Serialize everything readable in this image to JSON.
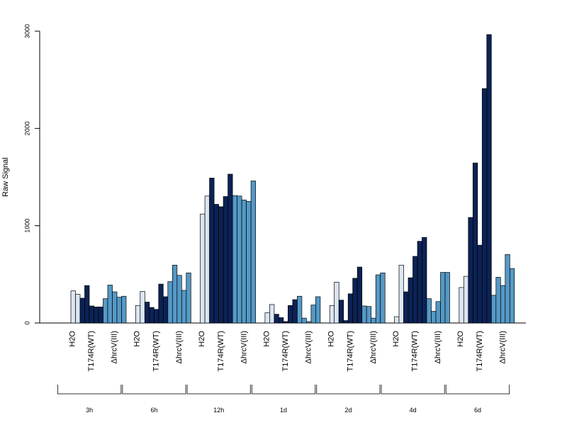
{
  "chart_data": {
    "type": "bar",
    "ylabel": "Raw Signal",
    "ylim": [
      0,
      3000
    ],
    "yticks": [
      0,
      1000,
      2000,
      3000
    ],
    "grid": false,
    "legend": "none",
    "groups": [
      "3h",
      "6h",
      "12h",
      "1d",
      "2d",
      "4d",
      "6d"
    ],
    "conditions": [
      {
        "name": "H2O",
        "color": "#dce6f2"
      },
      {
        "name": "T174R(WT)",
        "color": "#0b2255"
      },
      {
        "name": "ΔhrcV(III)",
        "color": "#5499c7"
      }
    ],
    "values": {
      "3h": {
        "H2O": [
          330,
          295
        ],
        "T174R(WT)": [
          255,
          385,
          175,
          165,
          165
        ],
        "ΔhrcV(III)": [
          250,
          390,
          320,
          265,
          275
        ]
      },
      "6h": {
        "H2O": [
          180,
          325
        ],
        "T174R(WT)": [
          215,
          160,
          140,
          400,
          270
        ],
        "ΔhrcV(III)": [
          425,
          595,
          490,
          335,
          515
        ]
      },
      "12h": {
        "H2O": [
          1120,
          1305
        ],
        "T174R(WT)": [
          1490,
          1220,
          1195,
          1300,
          1530
        ],
        "ΔhrcV(III)": [
          1310,
          1305,
          1265,
          1250,
          1460
        ]
      },
      "1d": {
        "H2O": [
          105,
          190
        ],
        "T174R(WT)": [
          90,
          55,
          15,
          180,
          240
        ],
        "ΔhrcV(III)": [
          275,
          50,
          15,
          185,
          270
        ]
      },
      "2d": {
        "H2O": [
          180,
          420
        ],
        "T174R(WT)": [
          235,
          25,
          300,
          460,
          575
        ],
        "ΔhrcV(III)": [
          175,
          170,
          50,
          495,
          515
        ]
      },
      "4d": {
        "H2O": [
          65,
          595
        ],
        "T174R(WT)": [
          320,
          465,
          685,
          840,
          880
        ],
        "ΔhrcV(III)": [
          250,
          120,
          220,
          520,
          520
        ]
      },
      "6d": {
        "H2O": [
          365,
          480
        ],
        "T174R(WT)": [
          1085,
          1645,
          800,
          2410,
          2965
        ],
        "ΔhrcV(III)": [
          285,
          470,
          385,
          705,
          560
        ]
      }
    }
  }
}
